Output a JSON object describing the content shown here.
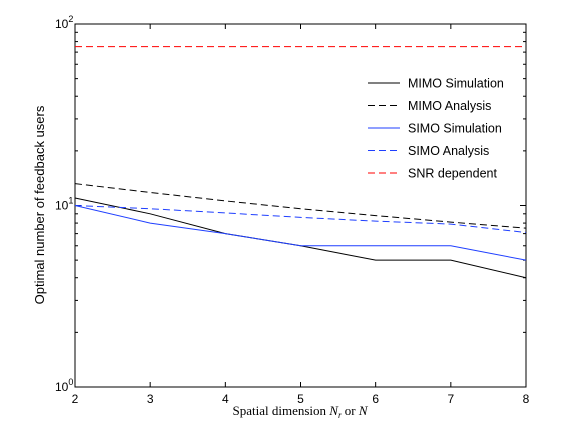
{
  "chart_data": {
    "type": "line",
    "title": "",
    "xlabel": "Spatial dimension N_r or N",
    "xlabel_parts": {
      "prefix": "Spatial dimension ",
      "var1": "N",
      "var1_sub": "r",
      "mid": " or ",
      "var2": "N"
    },
    "ylabel": "Optimal number of feedback users",
    "yscale": "log",
    "xlim": [
      2,
      8
    ],
    "ylim": [
      1,
      100
    ],
    "x": [
      2,
      3,
      4,
      5,
      6,
      7,
      8
    ],
    "x_ticks": [
      "2",
      "3",
      "4",
      "5",
      "6",
      "7",
      "8"
    ],
    "y_ticks": [
      {
        "value": 1,
        "base": "10",
        "exp": "0"
      },
      {
        "value": 10,
        "base": "10",
        "exp": "1"
      },
      {
        "value": 100,
        "base": "10",
        "exp": "2"
      }
    ],
    "grid": false,
    "legend_position": "top-right",
    "series": [
      {
        "name": "MIMO Simulation",
        "values": [
          11,
          9,
          7,
          6,
          5,
          5,
          4
        ],
        "color": "#000000",
        "style": "solid"
      },
      {
        "name": "MIMO Analysis",
        "values": [
          13.2,
          11.8,
          10.6,
          9.6,
          8.8,
          8.1,
          7.5
        ],
        "color": "#000000",
        "style": "dashed"
      },
      {
        "name": "SIMO Simulation",
        "values": [
          10,
          8,
          7,
          6,
          6,
          6,
          5
        ],
        "color": "#1f3fff",
        "style": "solid"
      },
      {
        "name": "SIMO Analysis",
        "values": [
          10,
          9.6,
          9.1,
          8.6,
          8.2,
          7.9,
          7.1
        ],
        "color": "#1f3fff",
        "style": "dashed"
      },
      {
        "name": "SNR dependent",
        "values": [
          75,
          75,
          75,
          75,
          75,
          75,
          75
        ],
        "color": "#ff0000",
        "style": "dashed"
      }
    ]
  }
}
